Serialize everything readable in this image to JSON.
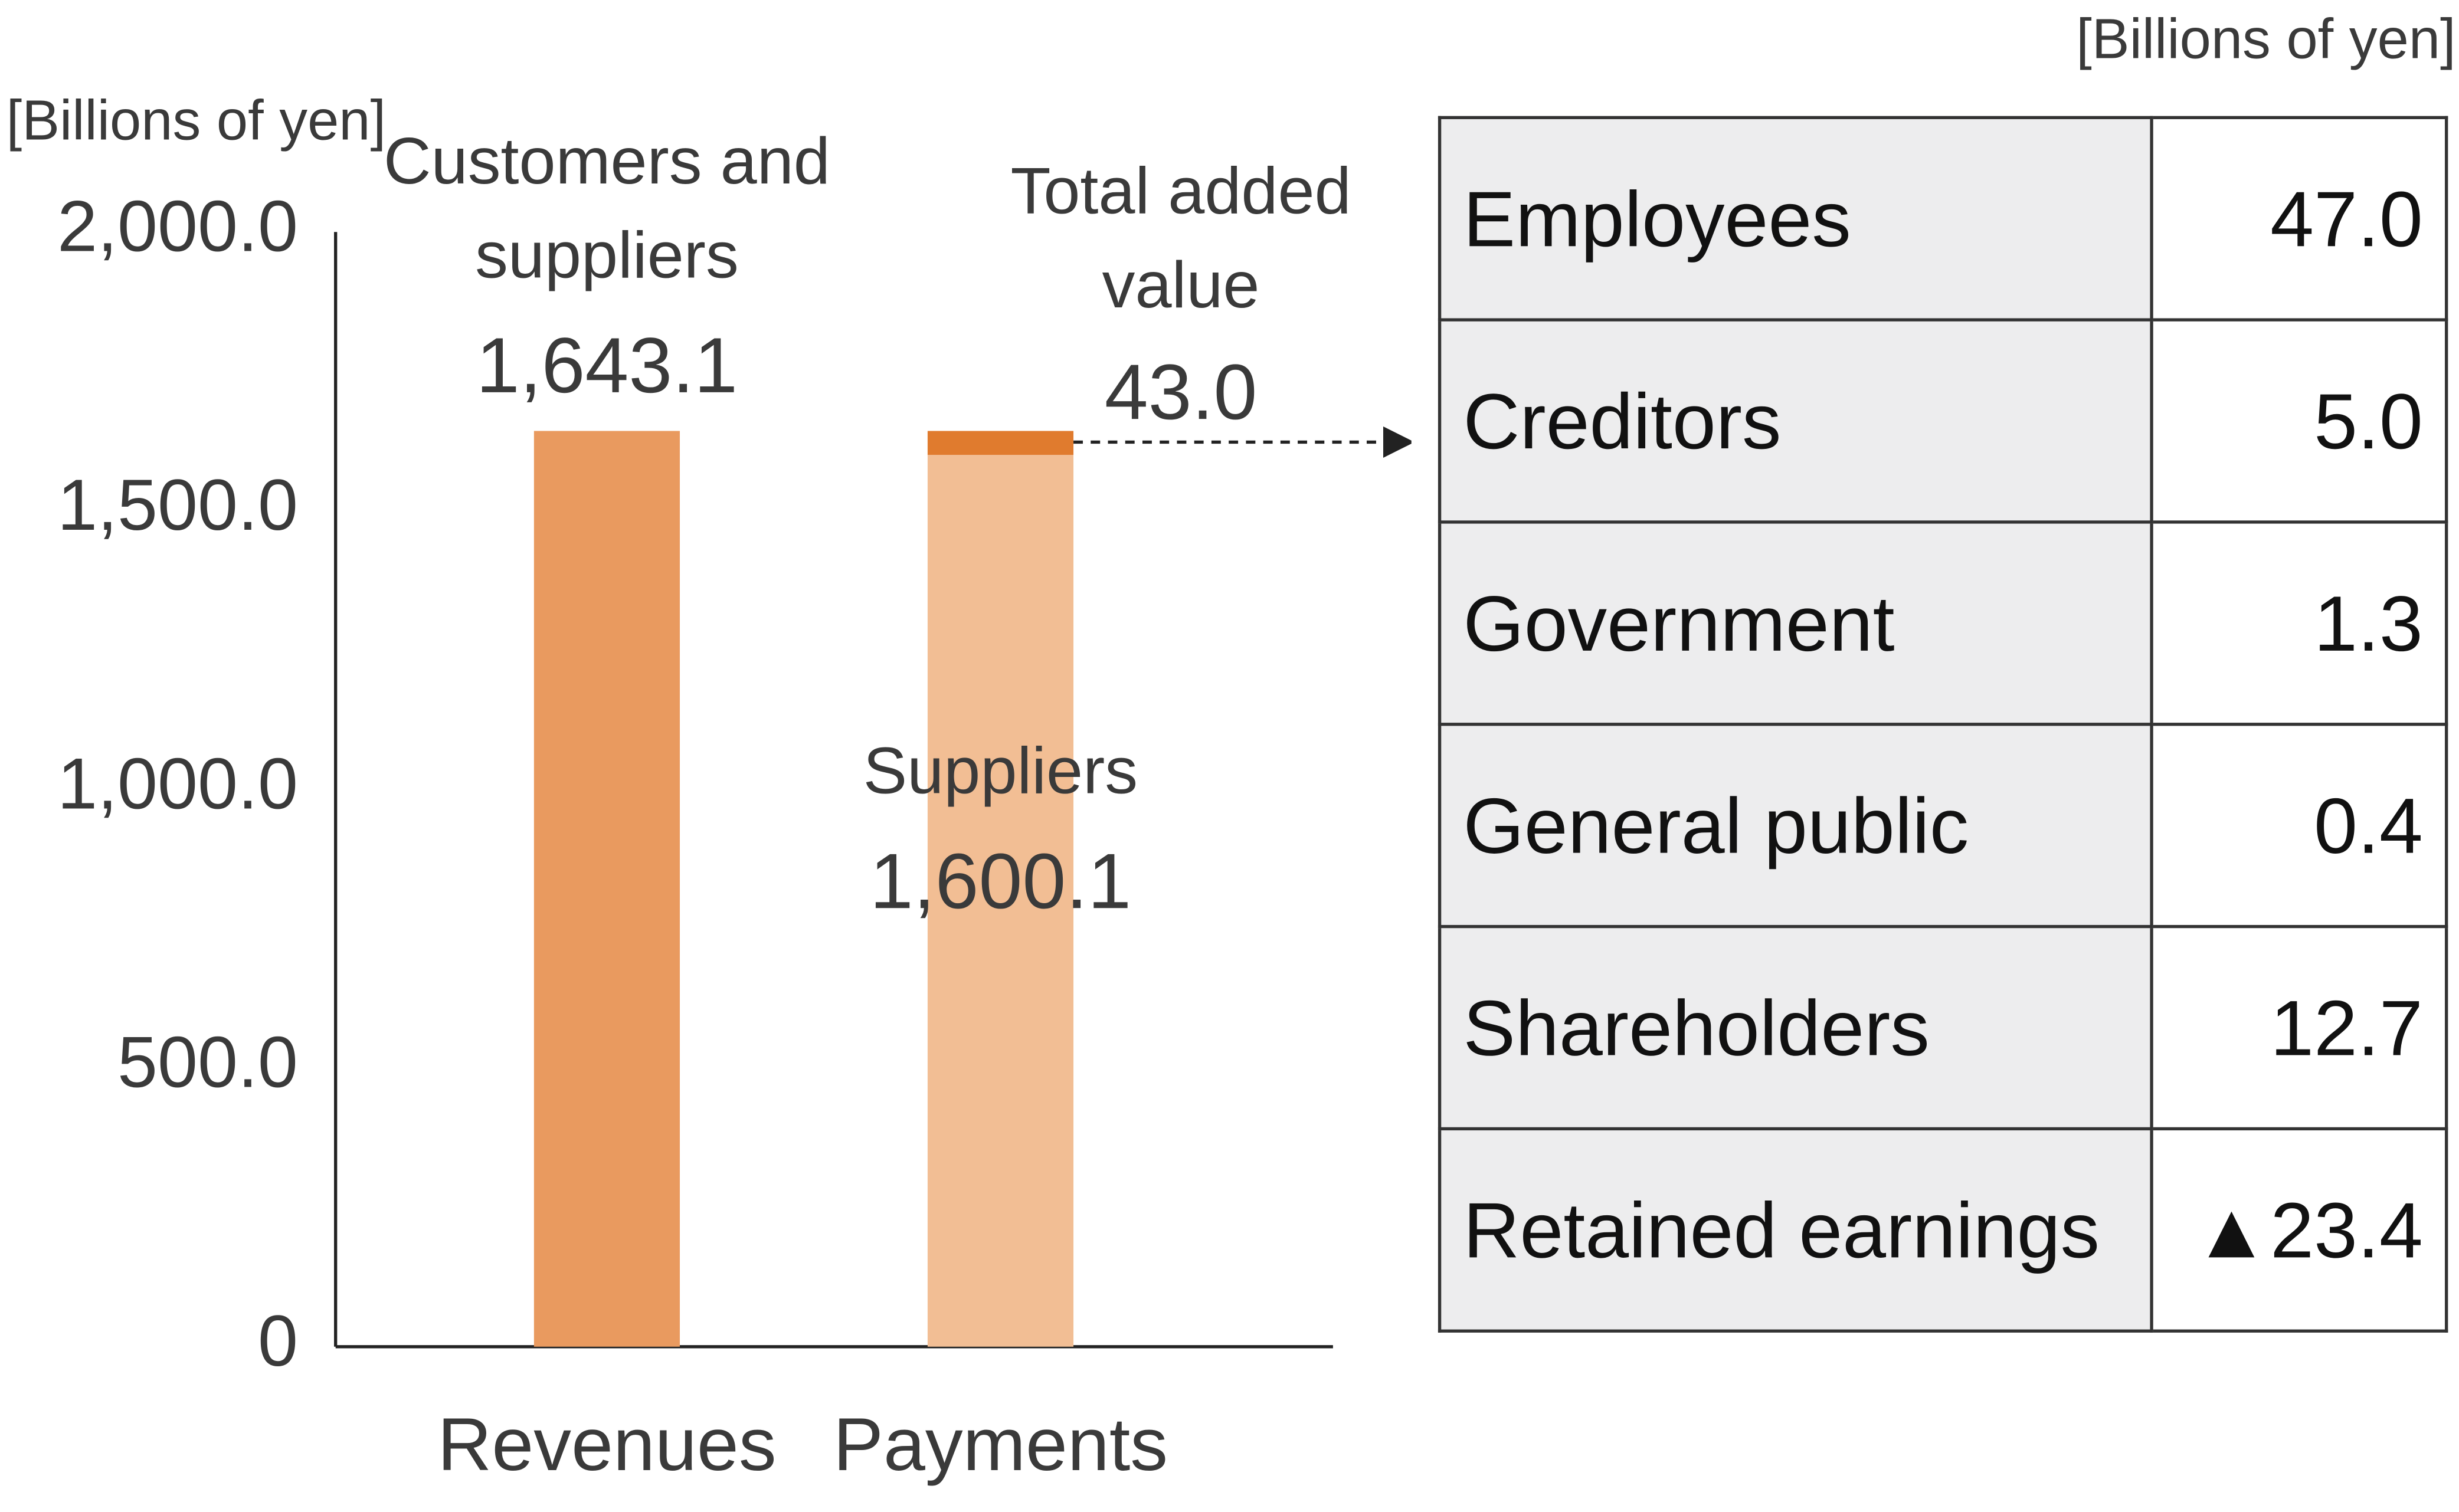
{
  "chart_data": {
    "type": "bar",
    "stacked": true,
    "y_label": "[Billions of yen]",
    "categories": [
      "Revenues",
      "Payments"
    ],
    "series": [
      {
        "name": "Customers and suppliers",
        "color": "#e99a5f",
        "values": [
          1643.1,
          null
        ],
        "value_labels": [
          "1,643.1",
          null
        ]
      },
      {
        "name": "Suppliers",
        "color": "#f2be94",
        "values": [
          null,
          1600.1
        ],
        "value_labels": [
          null,
          "1,600.1"
        ]
      },
      {
        "name": "Total added value",
        "color": "#e07b2e",
        "values": [
          null,
          43.0
        ],
        "value_labels": [
          null,
          "43.0"
        ]
      }
    ],
    "ylim": [
      0,
      2000
    ],
    "yticks": [
      0,
      {
        "value": 500,
        "label": "500.0"
      },
      {
        "value": 1000,
        "label": "1,000.0"
      },
      {
        "value": 1500,
        "label": "1,500.0"
      },
      {
        "value": 2000,
        "label": "2,000.0"
      }
    ],
    "grid": false
  },
  "table": {
    "unit": "[Billions of yen]",
    "rows": [
      [
        "Employees",
        "47.0"
      ],
      [
        "Creditors",
        "5.0"
      ],
      [
        "Government",
        "1.3"
      ],
      [
        "General public",
        "0.4"
      ],
      [
        "Shareholders",
        "12.7"
      ],
      [
        "Retained earnings",
        "▲23.4"
      ]
    ]
  }
}
